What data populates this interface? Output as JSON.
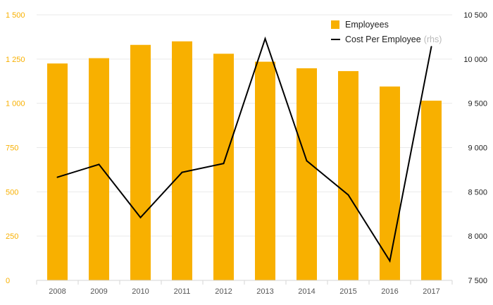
{
  "chart_data": {
    "type": "bar+line",
    "categories": [
      "2008",
      "2009",
      "2010",
      "2011",
      "2012",
      "2013",
      "2014",
      "2015",
      "2016",
      "2017"
    ],
    "series": [
      {
        "name": "Employees",
        "type": "bar",
        "axis": "left",
        "color": "#f8b000",
        "values": [
          1225,
          1255,
          1330,
          1350,
          1280,
          1235,
          1198,
          1182,
          1095,
          1015
        ]
      },
      {
        "name": "Cost Per Employee",
        "name_suffix": "(rhs)",
        "type": "line",
        "axis": "right",
        "color": "#000000",
        "values": [
          8665,
          8810,
          8210,
          8720,
          8820,
          10230,
          8850,
          8465,
          7720,
          10140
        ]
      }
    ],
    "y_left": {
      "min": 0,
      "max": 1500,
      "ticks": [
        0,
        250,
        500,
        750,
        1000,
        1250,
        1500
      ],
      "tick_labels": [
        "0",
        "250",
        "500",
        "750",
        "1 000",
        "1 250",
        "1 500"
      ],
      "color": "#f8b000"
    },
    "y_right": {
      "min": 7500,
      "max": 10500,
      "ticks": [
        7500,
        8000,
        8500,
        9000,
        9500,
        10000,
        10500
      ],
      "tick_labels": [
        "7 500",
        "8 000",
        "8 500",
        "9 000",
        "9 500",
        "10 000",
        "10 500"
      ]
    },
    "grid": true,
    "legend_position": "top-right",
    "title": "",
    "xlabel": "",
    "ylabel": ""
  }
}
